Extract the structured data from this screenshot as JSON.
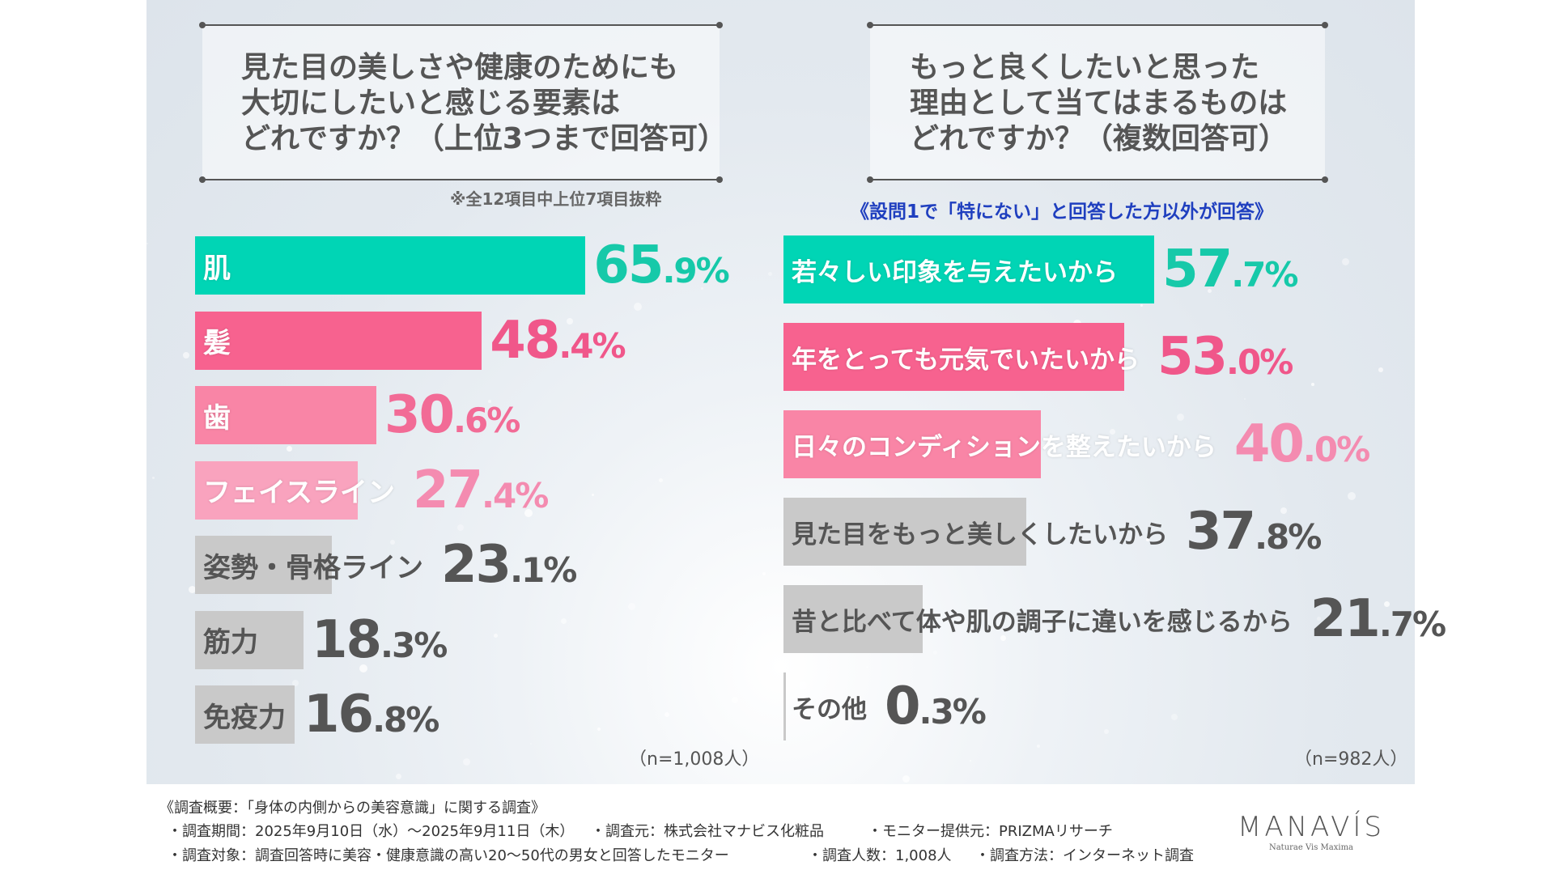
{
  "chart_data": [
    {
      "type": "bar",
      "orientation": "horizontal",
      "title": "見た目の美しさや健康のためにも\n大切にしたいと感じる要素は\nどれですか？（上位3つまで回答可）",
      "note": "※全12項目中上位7項目抜粋",
      "categories": [
        "肌",
        "髪",
        "歯",
        "フェイスライン",
        "姿勢・骨格ライン",
        "筋力",
        "免疫力"
      ],
      "values": [
        65.9,
        48.4,
        30.6,
        27.4,
        23.1,
        18.3,
        16.8
      ],
      "unit": "%",
      "bar_colors": [
        "#00d5b5",
        "#f7628f",
        "#f985a6",
        "#f9a3be",
        "#c9c9c9",
        "#c9c9c9",
        "#c9c9c9"
      ],
      "value_colors": [
        "#16c9a9",
        "#f0578a",
        "#f26b96",
        "#f48bb0",
        "#555555",
        "#555555",
        "#555555"
      ],
      "sample": "（n=1,008人）"
    },
    {
      "type": "bar",
      "orientation": "horizontal",
      "title": "もっと良くしたいと思った\n理由として当てはまるものは\nどれですか？（複数回答可）",
      "note": "《設問1で「特にない」と回答した方以外が回答》",
      "categories": [
        "若々しい印象を与えたいから",
        "年をとっても元気でいたいから",
        "日々のコンディションを整えたいから",
        "見た目をもっと美しくしたいから",
        "昔と比べて体や肌の調子に違いを感じるから",
        "その他"
      ],
      "values": [
        57.7,
        53.0,
        40.0,
        37.8,
        21.7,
        0.3
      ],
      "unit": "%",
      "bar_colors": [
        "#00d5b5",
        "#f7628f",
        "#f985a6",
        "#c9c9c9",
        "#c9c9c9",
        "#c9c9c9"
      ],
      "value_colors": [
        "#16c9a9",
        "#f0578a",
        "#f48bb0",
        "#555555",
        "#555555",
        "#555555"
      ],
      "sample": "（n=982人）"
    }
  ],
  "colors": {
    "note_blue": "#1f3fbf"
  },
  "footer": {
    "title": "《調査概要：「身体の内側からの美容意識」に関する調査》",
    "period": "・調査期間：2025年9月10日（水）～2025年9月11日（木）",
    "source": "・調査元：株式会社マナビス化粧品",
    "monitor": "・モニター提供元：PRIZMAリサーチ",
    "target": "・調査対象：調査回答時に美容・健康意識の高い20～50代の男女と回答したモニター",
    "count": "・調査人数：1,008人",
    "method": "・調査方法：インターネット調査"
  },
  "logo": {
    "name": "MANAVÍS",
    "tagline": "Naturae Vis Maxima"
  }
}
